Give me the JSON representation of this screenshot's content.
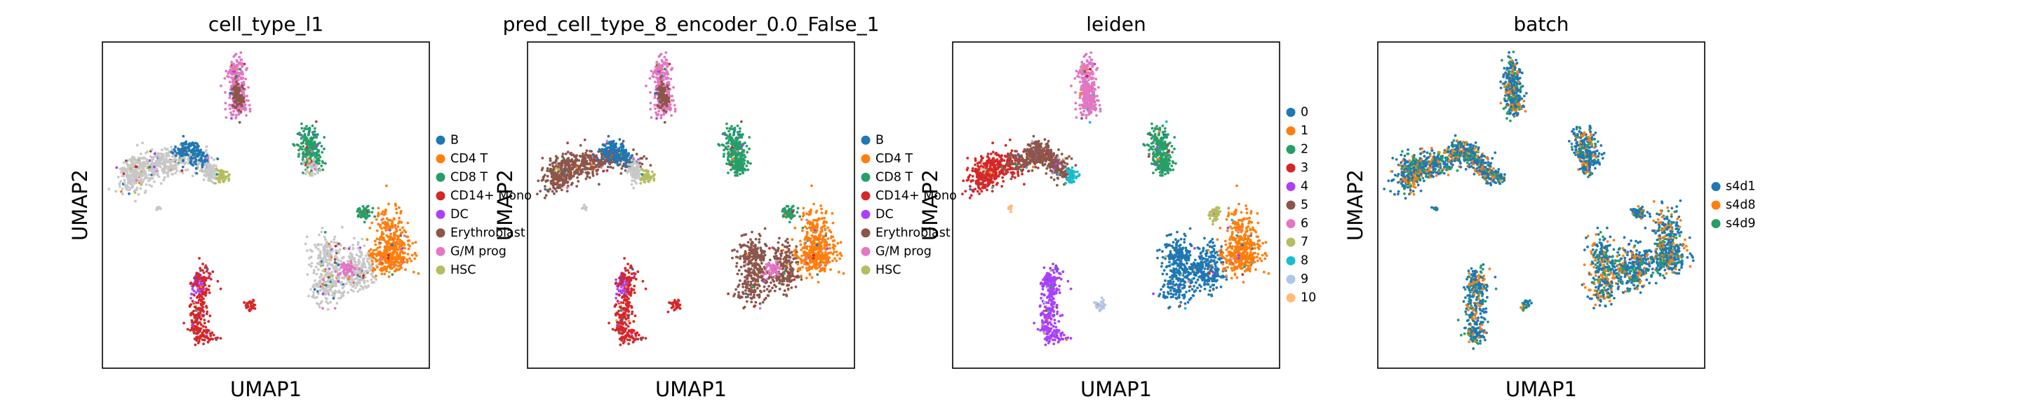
{
  "palettes": {
    "celltype": [
      "#1f77b4",
      "#ff7f0e",
      "#279e68",
      "#d62728",
      "#aa40fc",
      "#8c564b",
      "#e377c2",
      "#b5bd61"
    ],
    "leiden": [
      "#1f77b4",
      "#ff7f0e",
      "#279e68",
      "#d62728",
      "#aa40fc",
      "#8c564b",
      "#e377c2",
      "#b5bd61",
      "#17becf",
      "#aec7e8",
      "#ffbb78"
    ],
    "batch": [
      "#1f77b4",
      "#ff7f0e",
      "#279e68"
    ]
  },
  "chart_data": [
    {
      "type": "scatter",
      "title": "cell_type_l1",
      "xlabel": "UMAP1",
      "ylabel": "UMAP2",
      "grid": false,
      "legend_position": "right",
      "legend": [
        "B",
        "CD4 T",
        "CD8 T",
        "CD14+ Mono",
        "DC",
        "Erythroblast",
        "G/M prog",
        "HSC"
      ]
    },
    {
      "type": "scatter",
      "title": "pred_cell_type_8_encoder_0.0_False_1",
      "xlabel": "UMAP1",
      "ylabel": "UMAP2",
      "grid": false,
      "legend_position": "right",
      "legend": [
        "B",
        "CD4 T",
        "CD8 T",
        "CD14+ Mono",
        "DC",
        "Erythroblast",
        "G/M prog",
        "HSC"
      ]
    },
    {
      "type": "scatter",
      "title": "leiden",
      "xlabel": "UMAP1",
      "ylabel": "UMAP2",
      "grid": false,
      "legend_position": "right",
      "legend": [
        "0",
        "1",
        "2",
        "3",
        "4",
        "5",
        "6",
        "7",
        "8",
        "9",
        "10"
      ]
    },
    {
      "type": "scatter",
      "title": "batch",
      "xlabel": "UMAP1",
      "ylabel": "UMAP2",
      "grid": false,
      "legend_position": "right",
      "legend": [
        "s4d1",
        "s4d8",
        "s4d9"
      ]
    }
  ]
}
